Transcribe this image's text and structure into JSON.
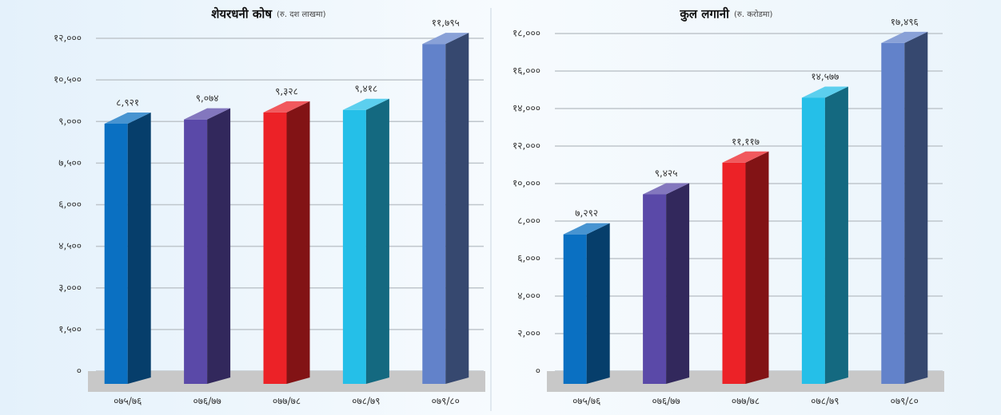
{
  "chart_data": [
    {
      "type": "bar",
      "title": "शेयरधनी कोष",
      "subtitle": "(रु. दश लाखमा)",
      "categories": [
        "०७५/७६",
        "०७६/७७",
        "०७७/७८",
        "०७८/७९",
        "०७९/८०"
      ],
      "values": [
        8921,
        9074,
        9328,
        9418,
        11795
      ],
      "value_labels": [
        "८,९२१",
        "९,०७४",
        "९,३२८",
        "९,४१८",
        "११,७९५"
      ],
      "colors": [
        "#0a70c2",
        "#5a49a8",
        "#ec2227",
        "#25bfe8",
        "#6282ca"
      ],
      "ylim": [
        0,
        12000
      ],
      "yticks": [
        {
          "value": 0,
          "label": "०"
        },
        {
          "value": 1500,
          "label": "१,५००"
        },
        {
          "value": 3000,
          "label": "३,०००"
        },
        {
          "value": 4500,
          "label": "४,५००"
        },
        {
          "value": 6000,
          "label": "६,०००"
        },
        {
          "value": 7500,
          "label": "७,५००"
        },
        {
          "value": 9000,
          "label": "९,०००"
        },
        {
          "value": 10500,
          "label": "१०,५००"
        },
        {
          "value": 12000,
          "label": "१२,०००"
        }
      ],
      "grid": true
    },
    {
      "type": "bar",
      "title": "कुल लगानी",
      "subtitle": "(रु. करोडमा)",
      "categories": [
        "०७५/७६",
        "०७६/७७",
        "०७७/७८",
        "०७८/७९",
        "०७९/८०"
      ],
      "values": [
        7292,
        9425,
        11117,
        14577,
        17496
      ],
      "value_labels": [
        "७,२९२",
        "९,४२५",
        "११,११७",
        "१४,५७७",
        "१७,४९६"
      ],
      "colors": [
        "#0a70c2",
        "#5a49a8",
        "#ec2227",
        "#25bfe8",
        "#6282ca"
      ],
      "ylim": [
        0,
        18000
      ],
      "yticks": [
        {
          "value": 0,
          "label": "०"
        },
        {
          "value": 2000,
          "label": "२,०००"
        },
        {
          "value": 4000,
          "label": "४,०००"
        },
        {
          "value": 6000,
          "label": "६,०००"
        },
        {
          "value": 8000,
          "label": "८,०००"
        },
        {
          "value": 10000,
          "label": "१०,०००"
        },
        {
          "value": 12000,
          "label": "१२,०००"
        },
        {
          "value": 14000,
          "label": "१४,०००"
        },
        {
          "value": 16000,
          "label": "१६,०००"
        },
        {
          "value": 18000,
          "label": "१८,०००"
        }
      ],
      "grid": true
    }
  ]
}
